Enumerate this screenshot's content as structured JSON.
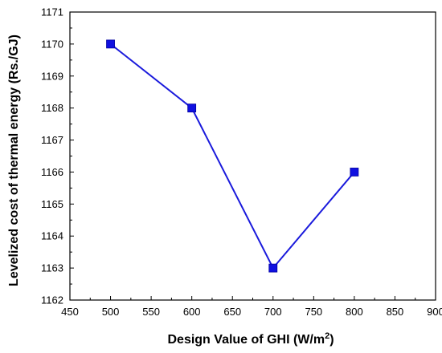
{
  "chart_data": {
    "type": "line",
    "x": [
      500,
      600,
      700,
      800
    ],
    "y": [
      1170,
      1168,
      1163,
      1166
    ],
    "xlabel": "Design Value of GHI (W/m",
    "xlabel_superscript": "2",
    "xlabel_suffix": ")",
    "ylabel": "Levelized cost of thermal energy (Rs./GJ)",
    "xlim": [
      450,
      900
    ],
    "ylim": [
      1162,
      1171
    ],
    "xticks": [
      "450",
      "500",
      "550",
      "600",
      "650",
      "700",
      "750",
      "800",
      "850",
      "900"
    ],
    "yticks": [
      "1162",
      "1163",
      "1164",
      "1165",
      "1166",
      "1167",
      "1168",
      "1169",
      "1170",
      "1171"
    ],
    "grid": false,
    "marker": "square",
    "line_color": "#1a1adc",
    "marker_color": "#1010e0"
  }
}
